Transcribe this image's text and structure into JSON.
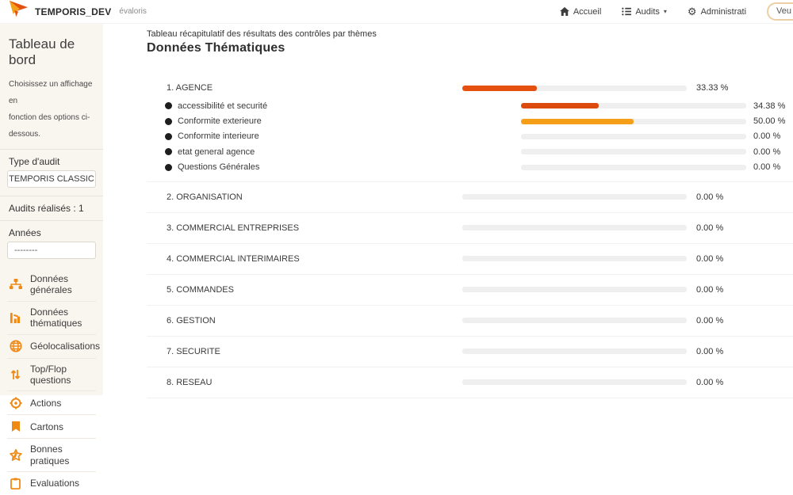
{
  "colors": {
    "accent_dark": "#e5500f",
    "accent_red": "#dd4a0d",
    "accent_amber": "#f59e17",
    "track": "#efefef",
    "icon_orange": "#f08a16"
  },
  "topbar": {
    "brand": "TEMPORIS_DEV",
    "brand_suffix": "évaloris",
    "nav": [
      {
        "label": "Accueil",
        "icon": "home-icon"
      },
      {
        "label": "Audits",
        "icon": "list-icon",
        "chevron": "▾"
      },
      {
        "label": "Administrati",
        "icon": "gear-icon"
      }
    ],
    "user_pill": "Veu"
  },
  "sidebar": {
    "title": "Tableau de bord",
    "subtitle_line1": "Choisissez un affichage en",
    "subtitle_line2": "fonction des options ci-dessous.",
    "audit_type_label": "Type d'audit",
    "audit_type_value": "TEMPORIS CLASSIC",
    "audits_count": "Audits réalisés : 1",
    "years_label": "Années",
    "years_value": "--------",
    "menu": [
      {
        "name": "sidebar-item-donnees-generales",
        "icon": "sitemap-icon",
        "label": "Données générales"
      },
      {
        "name": "sidebar-item-donnees-thematiques",
        "icon": "chart-icon",
        "label": "Données thématiques"
      },
      {
        "name": "sidebar-item-geolocalisations",
        "icon": "globe-icon",
        "label": "Géolocalisations"
      },
      {
        "name": "sidebar-item-top-flop-questions",
        "icon": "sort-icon",
        "label": "Top/Flop questions"
      },
      {
        "name": "sidebar-item-actions",
        "icon": "target-icon",
        "label": "Actions"
      },
      {
        "name": "sidebar-item-cartons",
        "icon": "bookmark-icon",
        "label": "Cartons"
      },
      {
        "name": "sidebar-item-bonnes-pratiques",
        "icon": "star-icon",
        "label": "Bonnes pratiques"
      },
      {
        "name": "sidebar-item-evaluations",
        "icon": "clipboard-icon",
        "label": "Evaluations"
      }
    ]
  },
  "main": {
    "subtitle": "Tableau récapitulatif des résultats des contrôles par thèmes",
    "title": "Données Thématiques",
    "themes": [
      {
        "label": "1. AGENCE",
        "value": 33.33,
        "value_label": "33.33 %",
        "color": "#e5500f",
        "subs": [
          {
            "label": "accessibilité et securité",
            "value": 34.38,
            "value_label": "34.38 %",
            "color": "#dd4a0d"
          },
          {
            "label": "Conformite exterieure",
            "value": 50,
            "value_label": "50.00 %",
            "color": "#f59e17"
          },
          {
            "label": "Conformite interieure",
            "value": 0,
            "value_label": "0.00 %",
            "color": "#e5500f"
          },
          {
            "label": "etat general agence",
            "value": 0,
            "value_label": "0.00 %",
            "color": "#e5500f"
          },
          {
            "label": "Questions Générales",
            "value": 0,
            "value_label": "0.00 %",
            "color": "#e5500f"
          }
        ]
      },
      {
        "label": "2. ORGANISATION",
        "value": 0,
        "value_label": "0.00 %",
        "color": "#e5500f",
        "subs": []
      },
      {
        "label": "3. COMMERCIAL ENTREPRISES",
        "value": 0,
        "value_label": "0.00 %",
        "color": "#e5500f",
        "subs": []
      },
      {
        "label": "4. COMMERCIAL INTERIMAIRES",
        "value": 0,
        "value_label": "0.00 %",
        "color": "#e5500f",
        "subs": []
      },
      {
        "label": "5. COMMANDES",
        "value": 0,
        "value_label": "0.00 %",
        "color": "#e5500f",
        "subs": []
      },
      {
        "label": "6. GESTION",
        "value": 0,
        "value_label": "0.00 %",
        "color": "#e5500f",
        "subs": []
      },
      {
        "label": "7. SECURITE",
        "value": 0,
        "value_label": "0.00 %",
        "color": "#e5500f",
        "subs": []
      },
      {
        "label": "8. RESEAU",
        "value": 0,
        "value_label": "0.00 %",
        "color": "#e5500f",
        "subs": []
      }
    ]
  }
}
